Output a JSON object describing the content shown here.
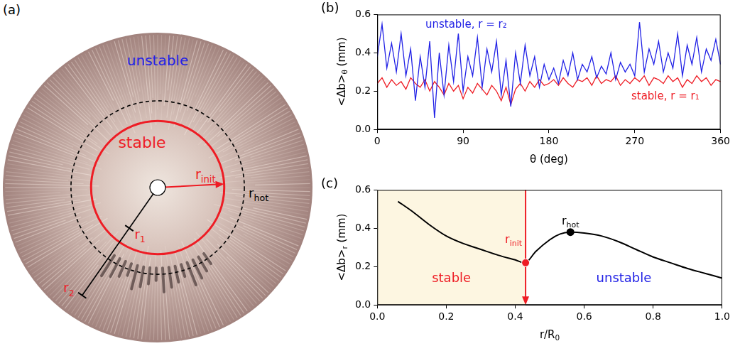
{
  "diagram": {
    "panel_label": "(a)",
    "labels": {
      "unstable": "unstable",
      "stable": "stable",
      "r_init": {
        "text": "r",
        "sub": "init"
      },
      "r_hot": {
        "text": "r",
        "sub": "hot"
      },
      "r1": {
        "text": "r",
        "sub": "1"
      },
      "r2": {
        "text": "r",
        "sub": "2"
      }
    }
  },
  "chart_data": [
    {
      "panel_label": "(b)",
      "type": "line",
      "x_label": {
        "text": "θ (deg)"
      },
      "y_label": {
        "text": "<Δb>",
        "sub": "θ",
        "suffix": " (mm)"
      },
      "x": [
        0,
        5,
        10,
        15,
        20,
        25,
        30,
        35,
        40,
        45,
        50,
        55,
        60,
        65,
        70,
        75,
        80,
        85,
        90,
        95,
        100,
        105,
        110,
        115,
        120,
        125,
        130,
        135,
        140,
        145,
        150,
        155,
        160,
        165,
        170,
        175,
        180,
        185,
        190,
        195,
        200,
        205,
        210,
        215,
        220,
        225,
        230,
        235,
        240,
        245,
        250,
        255,
        260,
        265,
        270,
        275,
        280,
        285,
        290,
        295,
        300,
        305,
        310,
        315,
        320,
        325,
        330,
        335,
        340,
        345,
        350,
        355,
        360
      ],
      "series": [
        {
          "name": "unstable, r = r₂",
          "color": "#2222e6",
          "values": [
            0.38,
            0.55,
            0.32,
            0.45,
            0.3,
            0.5,
            0.28,
            0.42,
            0.15,
            0.38,
            0.22,
            0.46,
            0.06,
            0.4,
            0.18,
            0.44,
            0.25,
            0.5,
            0.2,
            0.38,
            0.28,
            0.48,
            0.22,
            0.42,
            0.3,
            0.46,
            0.18,
            0.36,
            0.12,
            0.4,
            0.24,
            0.44,
            0.28,
            0.38,
            0.22,
            0.34,
            0.26,
            0.32,
            0.24,
            0.36,
            0.28,
            0.4,
            0.26,
            0.34,
            0.3,
            0.38,
            0.27,
            0.33,
            0.29,
            0.4,
            0.26,
            0.35,
            0.3,
            0.34,
            0.28,
            0.56,
            0.3,
            0.42,
            0.34,
            0.46,
            0.3,
            0.4,
            0.32,
            0.5,
            0.28,
            0.44,
            0.34,
            0.48,
            0.3,
            0.42,
            0.36,
            0.47,
            0.34
          ]
        },
        {
          "name": "stable, r = r₁",
          "color": "#ee1c24",
          "values": [
            0.24,
            0.27,
            0.22,
            0.26,
            0.23,
            0.25,
            0.21,
            0.27,
            0.24,
            0.22,
            0.26,
            0.2,
            0.25,
            0.22,
            0.18,
            0.24,
            0.2,
            0.23,
            0.16,
            0.22,
            0.19,
            0.24,
            0.21,
            0.18,
            0.23,
            0.2,
            0.15,
            0.22,
            0.13,
            0.21,
            0.24,
            0.2,
            0.25,
            0.22,
            0.26,
            0.23,
            0.24,
            0.26,
            0.23,
            0.27,
            0.24,
            0.22,
            0.26,
            0.25,
            0.27,
            0.23,
            0.28,
            0.24,
            0.26,
            0.25,
            0.28,
            0.23,
            0.26,
            0.24,
            0.27,
            0.25,
            0.28,
            0.23,
            0.27,
            0.26,
            0.24,
            0.28,
            0.25,
            0.27,
            0.22,
            0.26,
            0.24,
            0.28,
            0.25,
            0.27,
            0.23,
            0.26,
            0.25
          ]
        }
      ],
      "xlim": [
        0,
        360
      ],
      "xticks": [
        0,
        90,
        180,
        270,
        360
      ],
      "ylim": [
        0,
        0.6
      ],
      "yticks": [
        {
          "value": 0,
          "label": "0.0"
        },
        0.2,
        0.4,
        0.6
      ],
      "grid": false
    },
    {
      "panel_label": "(c)",
      "type": "line",
      "x_label": {
        "text": "r/R",
        "sub": "0"
      },
      "y_label": {
        "text": "<Δb>",
        "sub": "r",
        "suffix": " (mm)"
      },
      "x": [
        0.06,
        0.1,
        0.15,
        0.2,
        0.25,
        0.3,
        0.35,
        0.4,
        0.43,
        0.46,
        0.5,
        0.53,
        0.56,
        0.6,
        0.65,
        0.7,
        0.75,
        0.8,
        0.85,
        0.9,
        0.95,
        1.0
      ],
      "values": [
        0.54,
        0.49,
        0.42,
        0.36,
        0.32,
        0.29,
        0.26,
        0.235,
        0.22,
        0.28,
        0.34,
        0.37,
        0.38,
        0.375,
        0.36,
        0.33,
        0.29,
        0.25,
        0.22,
        0.19,
        0.165,
        0.14
      ],
      "color": "#000000",
      "markers": {
        "r_init": {
          "x": 0.43,
          "y": 0.22,
          "label": {
            "text": "r",
            "sub": "init"
          },
          "color": "#ee1c24"
        },
        "r_hot": {
          "x": 0.56,
          "y": 0.38,
          "label": {
            "text": "r",
            "sub": "hot"
          },
          "color": "#000000"
        }
      },
      "regions": {
        "stable": {
          "text": "stable",
          "color": "#ee1c24"
        },
        "unstable": {
          "text": "unstable",
          "color": "#2222e6"
        }
      },
      "xlim": [
        0,
        1
      ],
      "xticks": [
        {
          "value": 0,
          "label": "0.0"
        },
        0.2,
        0.4,
        0.6,
        0.8,
        {
          "value": 1,
          "label": "1.0"
        }
      ],
      "ylim": [
        0,
        0.6
      ],
      "yticks": [
        {
          "value": 0,
          "label": "0.0"
        },
        0.2,
        0.4,
        0.6
      ],
      "grid": false
    }
  ]
}
